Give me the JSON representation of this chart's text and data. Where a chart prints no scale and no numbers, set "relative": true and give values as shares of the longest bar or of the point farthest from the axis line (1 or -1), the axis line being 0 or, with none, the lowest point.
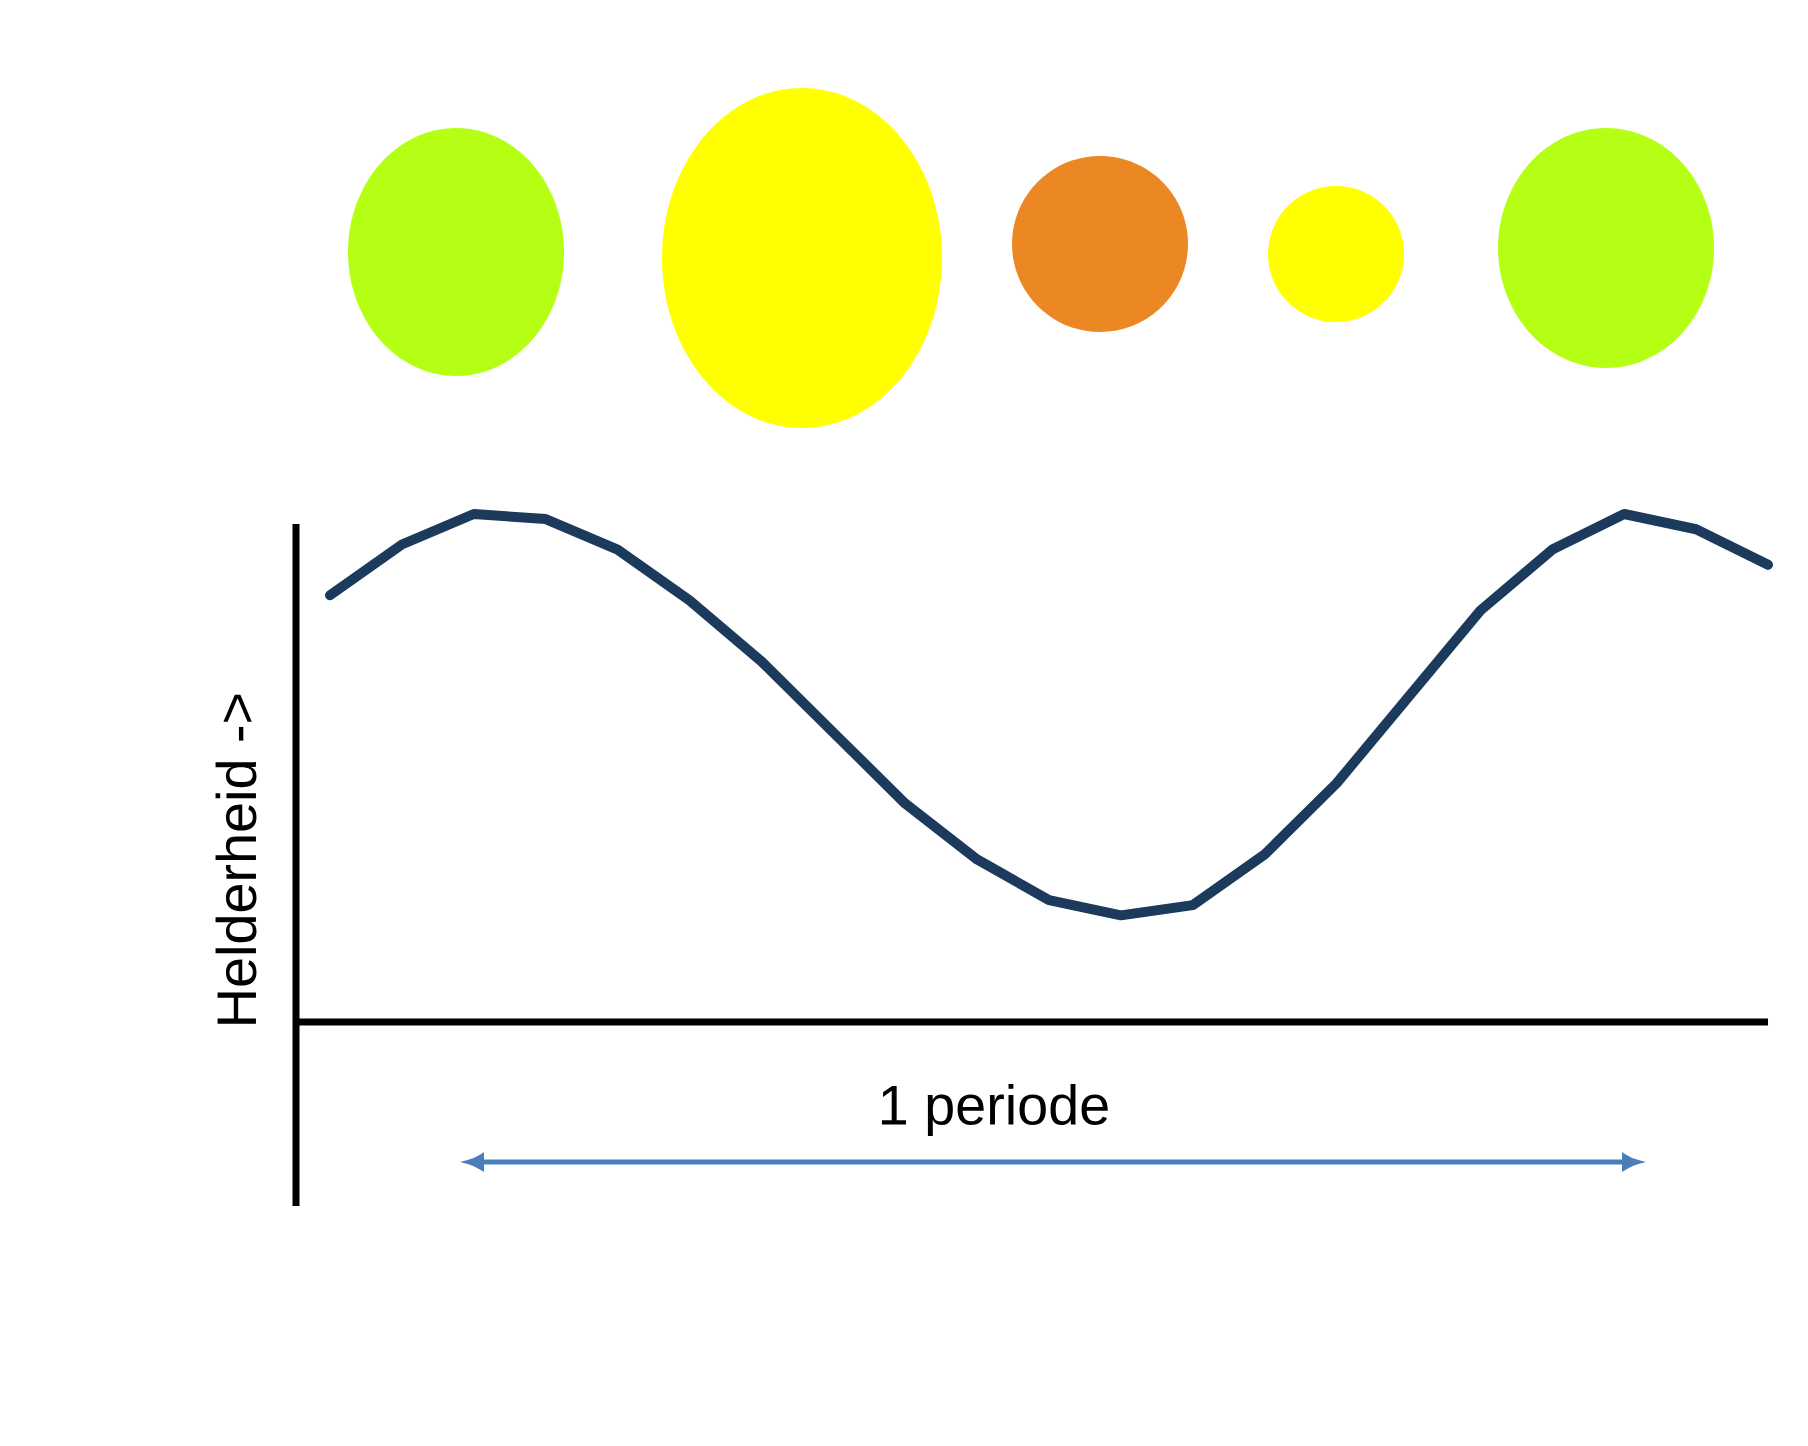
{
  "chart_data": {
    "type": "line",
    "relative": true,
    "ylabel": "Helderheid ->",
    "categories": [
      null,
      null,
      null,
      null,
      null,
      null,
      null,
      null,
      null,
      null,
      null,
      null,
      null,
      null,
      null,
      null,
      null,
      null,
      null,
      null,
      null
    ],
    "values": [
      0.84,
      0.94,
      1.0,
      0.99,
      0.93,
      0.83,
      0.71,
      0.57,
      0.43,
      0.32,
      0.24,
      0.21,
      0.23,
      0.33,
      0.47,
      0.64,
      0.81,
      0.93,
      1.0,
      0.97,
      0.9
    ],
    "color": "#1b3a5c",
    "marker": "none",
    "line_style": "solid",
    "annotations": [
      "1 periode"
    ]
  }
}
